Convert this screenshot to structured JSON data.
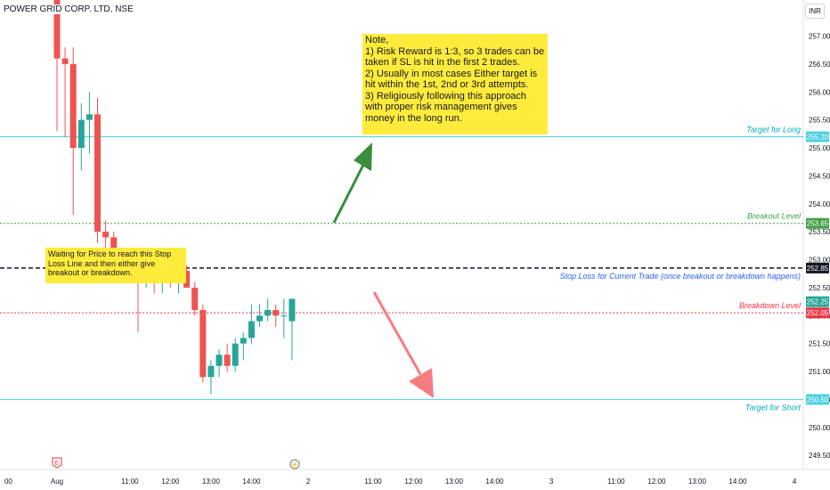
{
  "header": {
    "symbol": "POWER GRID CORP. LTD, NSE",
    "currency": "INR"
  },
  "notes": {
    "main": "Note,\n1) Risk Reward is 1:3, so 3 trades can be taken if SL is hit in the first 2 trades.\n2) Usually in most cases Either target is hit within the 1st, 2nd or 3rd attempts.\n3) Religiously following this approach with proper risk management gives money in the long run.",
    "waiting": "Waiting for Price to reach this Stop Loss Line and then either give breakout or breakdown."
  },
  "colors": {
    "up": "#26a69a",
    "down": "#ef5350",
    "target_line": "#4dd0e1",
    "breakout": "#43a047",
    "breakdown": "#f23645",
    "stoploss": "#131722",
    "arrow_up": "#388e3c",
    "arrow_down": "#f77c80",
    "stoploss_text": "#2962ff",
    "target_text": "#00acc1"
  },
  "chart_data": {
    "type": "candlestick",
    "y_axis": {
      "range": [
        249.4,
        257.3
      ],
      "ticks": [
        "249.50",
        "250.00",
        "250.50",
        "251.00",
        "251.50",
        "252.00",
        "252.50",
        "253.00",
        "253.50",
        "254.00",
        "254.50",
        "255.00",
        "255.50",
        "256.00",
        "256.50",
        "257.00"
      ]
    },
    "x_axis": {
      "labels": [
        {
          "i": -6,
          "label": "00"
        },
        {
          "i": 0,
          "label": "Aug"
        },
        {
          "i": 9,
          "label": "11:00"
        },
        {
          "i": 14,
          "label": "12:00"
        },
        {
          "i": 19,
          "label": "13:00"
        },
        {
          "i": 24,
          "label": "14:00"
        },
        {
          "i": 31,
          "label": "2"
        },
        {
          "i": 39,
          "label": "11:00"
        },
        {
          "i": 44,
          "label": "12:00"
        },
        {
          "i": 49,
          "label": "13:00"
        },
        {
          "i": 54,
          "label": "14:00"
        },
        {
          "i": 61,
          "label": "3"
        },
        {
          "i": 69,
          "label": "11:00"
        },
        {
          "i": 74,
          "label": "12:00"
        },
        {
          "i": 79,
          "label": "13:00"
        },
        {
          "i": 84,
          "label": "14:00"
        },
        {
          "i": 91,
          "label": "4"
        }
      ]
    },
    "candles": [
      {
        "o": 258.0,
        "h": 258.5,
        "l": 255.3,
        "c": 256.6
      },
      {
        "o": 256.6,
        "h": 256.8,
        "l": 255.2,
        "c": 256.5
      },
      {
        "o": 256.5,
        "h": 256.8,
        "l": 253.8,
        "c": 255.0
      },
      {
        "o": 255.0,
        "h": 255.8,
        "l": 254.6,
        "c": 255.5
      },
      {
        "o": 255.5,
        "h": 256.0,
        "l": 254.9,
        "c": 255.6
      },
      {
        "o": 255.6,
        "h": 255.9,
        "l": 253.3,
        "c": 253.5
      },
      {
        "o": 253.5,
        "h": 253.7,
        "l": 253.1,
        "c": 253.4
      },
      {
        "o": 253.4,
        "h": 253.5,
        "l": 252.8,
        "c": 252.9
      },
      {
        "o": 252.9,
        "h": 253.1,
        "l": 252.6,
        "c": 252.7
      },
      {
        "o": 252.7,
        "h": 253.0,
        "l": 252.6,
        "c": 252.9
      },
      {
        "o": 252.9,
        "h": 253.0,
        "l": 251.7,
        "c": 252.6
      },
      {
        "o": 252.6,
        "h": 253.1,
        "l": 252.5,
        "c": 252.9
      },
      {
        "o": 252.9,
        "h": 253.0,
        "l": 252.4,
        "c": 252.6
      },
      {
        "o": 252.6,
        "h": 252.9,
        "l": 252.4,
        "c": 252.8
      },
      {
        "o": 252.8,
        "h": 253.0,
        "l": 252.5,
        "c": 252.7
      },
      {
        "o": 252.7,
        "h": 252.9,
        "l": 252.4,
        "c": 252.8
      },
      {
        "o": 252.8,
        "h": 252.9,
        "l": 252.5,
        "c": 252.5
      },
      {
        "o": 252.5,
        "h": 252.6,
        "l": 252.0,
        "c": 252.1
      },
      {
        "o": 252.1,
        "h": 252.2,
        "l": 250.8,
        "c": 250.9
      },
      {
        "o": 250.9,
        "h": 251.2,
        "l": 250.6,
        "c": 251.1
      },
      {
        "o": 251.1,
        "h": 251.4,
        "l": 250.9,
        "c": 251.3
      },
      {
        "o": 251.3,
        "h": 251.5,
        "l": 251.0,
        "c": 251.1
      },
      {
        "o": 251.1,
        "h": 251.6,
        "l": 251.0,
        "c": 251.5
      },
      {
        "o": 251.5,
        "h": 251.7,
        "l": 251.2,
        "c": 251.6
      },
      {
        "o": 251.6,
        "h": 252.2,
        "l": 251.5,
        "c": 251.9
      },
      {
        "o": 251.9,
        "h": 252.2,
        "l": 251.8,
        "c": 252.0
      },
      {
        "o": 252.0,
        "h": 252.3,
        "l": 251.9,
        "c": 252.1
      },
      {
        "o": 252.1,
        "h": 252.2,
        "l": 251.8,
        "c": 252.0
      },
      {
        "o": 252.0,
        "h": 252.3,
        "l": 251.6,
        "c": 252.0
      },
      {
        "o": 251.9,
        "h": 252.3,
        "l": 251.2,
        "c": 252.3
      }
    ],
    "levels": [
      {
        "name": "target-long",
        "value": 255.2,
        "label": "Target for Long",
        "price_label": "255.20",
        "style": "solid",
        "color_key": "target_line",
        "text_key": "target_text"
      },
      {
        "name": "breakout",
        "value": 253.65,
        "label": "Breakout Level",
        "price_label": "253.65",
        "style": "dotted",
        "color_key": "breakout",
        "text_key": "breakout"
      },
      {
        "name": "stoploss",
        "value": 252.85,
        "label": "Stop Loss for Current Trade (once breakout or breakdown happens)",
        "price_label": "252.85",
        "style": "dashed",
        "color_key": "stoploss",
        "text_key": "stoploss_text"
      },
      {
        "name": "breakdown",
        "value": 252.05,
        "label": "Breakdown Level",
        "price_label": "252.05",
        "style": "dotted",
        "color_key": "breakdown",
        "text_key": "breakdown"
      },
      {
        "name": "target-short",
        "value": 250.5,
        "label": "Target for Short",
        "price_label": "250.50",
        "style": "solid",
        "color_key": "target_line",
        "text_key": "target_text"
      }
    ],
    "last_price": {
      "value": 252.25,
      "label": "252.25"
    }
  }
}
